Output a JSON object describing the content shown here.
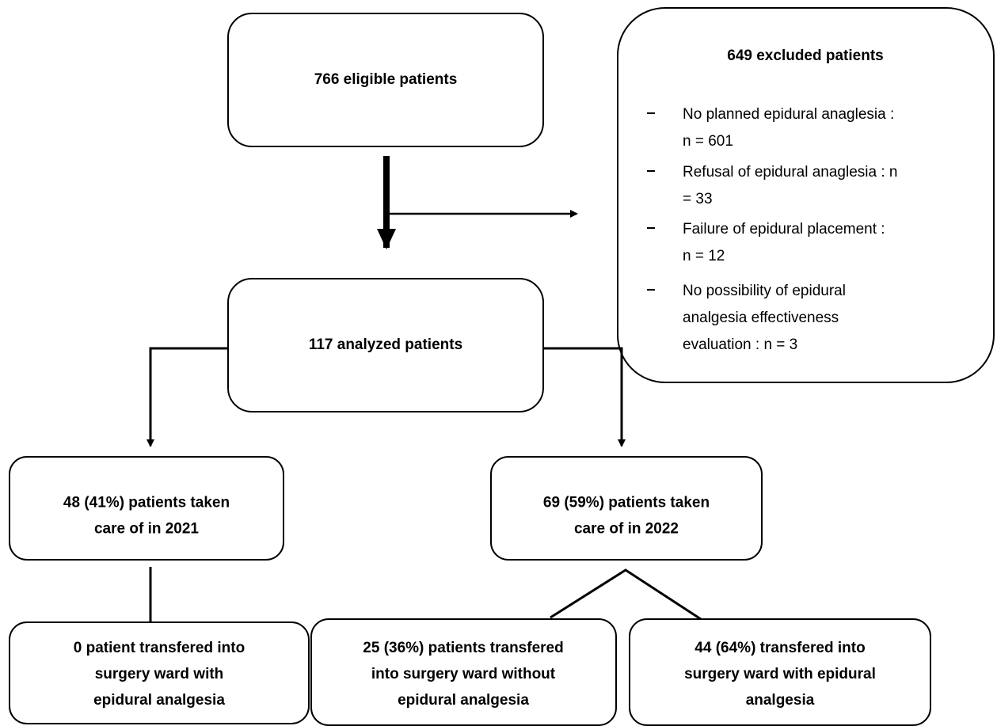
{
  "nodes": [
    {
      "lines": [
        "766 eligible patients"
      ]
    },
    {
      "title": "649 excluded patients",
      "items": [
        {
          "lines": [
            "No planned epidural anaglesia :",
            "n = 601"
          ]
        },
        {
          "lines": [
            "Refusal of epidural anaglesia : n",
            "= 33"
          ]
        },
        {
          "lines": [
            "Failure of epidural placement :",
            "n = 12"
          ]
        },
        {
          "lines": [
            "No possibility of epidural",
            "analgesia effectiveness",
            "evaluation : n = 3"
          ]
        }
      ]
    },
    {
      "lines": [
        "117 analyzed patients"
      ]
    },
    {
      "lines": [
        "48 (41%) patients taken",
        "care of in 2021"
      ]
    },
    {
      "lines": [
        "69 (59%) patients taken",
        "care of in 2022"
      ]
    },
    {
      "lines": [
        "0 patient transfered into",
        "surgery ward with",
        "epidural analgesia"
      ]
    },
    {
      "lines": [
        "25 (36%) patients transfered",
        "into surgery ward without",
        "epidural  analgesia"
      ]
    },
    {
      "lines": [
        "44 (64%) transfered into",
        "surgery ward with epidural",
        "analgesia"
      ]
    }
  ]
}
